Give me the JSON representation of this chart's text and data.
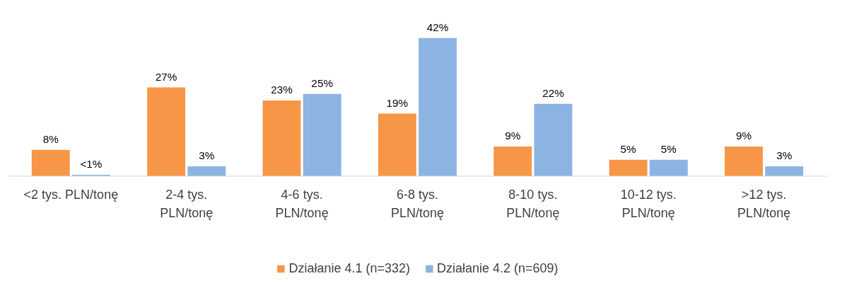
{
  "chart_data": {
    "type": "bar",
    "categories": [
      "<2 tys. PLN/tonę",
      "2-4 tys. PLN/tonę",
      "4-6 tys. PLN/tonę",
      "6-8 tys. PLN/tonę",
      "8-10 tys. PLN/tonę",
      "10-12 tys. PLN/tonę",
      ">12 tys. PLN/tonę"
    ],
    "series": [
      {
        "name": "Działanie 4.1 (n=332)",
        "color": "#f79646",
        "values": [
          8,
          27,
          23,
          19,
          9,
          5,
          9
        ],
        "value_labels": [
          "8%",
          "27%",
          "23%",
          "19%",
          "9%",
          "5%",
          "9%"
        ]
      },
      {
        "name": "Działanie 4.2 (n=609)",
        "color": "#8db3e2",
        "values": [
          0.4,
          3,
          25,
          42,
          22,
          5,
          3
        ],
        "value_labels": [
          "<1%",
          "3%",
          "25%",
          "42%",
          "22%",
          "5%",
          "3%"
        ]
      }
    ],
    "legend": "bottom"
  }
}
